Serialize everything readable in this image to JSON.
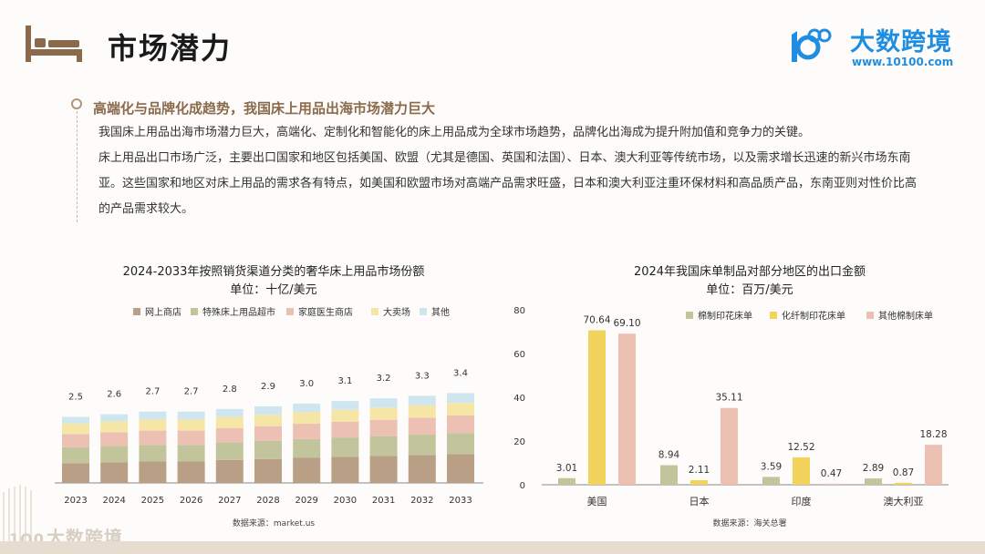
{
  "header": {
    "title": "市场潜力",
    "logo_name": "大数跨境",
    "logo_url": "www.10100.com",
    "bottom_logo_name": "大数跨境"
  },
  "section": {
    "heading": "高端化与品牌化成趋势，我国床上用品出海市场潜力巨大",
    "paragraphs": [
      "我国床上用品出海市场潜力巨大，高端化、定制化和智能化的床上用品成为全球市场趋势，品牌化出海成为提升附加值和竞争力的关键。",
      "床上用品出口市场广泛，主要出口国家和地区包括美国、欧盟（尤其是德国、英国和法国）、日本、澳大利亚等传统市场，以及需求增长迅速的新兴市场东南亚。这些国家和地区对床上用品的需求各有特点，如美国和欧盟市场对高端产品需求旺盛，日本和澳大利亚注重环保材料和高品质产品，东南亚则对性价比高的产品需求较大。"
    ]
  },
  "chart_data": [
    {
      "type": "bar",
      "stacked": true,
      "title": "2024-2033年按照销货渠道分类的奢华床上用品市场份额",
      "unit": "单位：十亿/美元",
      "source": "数据来源：market.us",
      "categories": [
        "2023",
        "2024",
        "2025",
        "2026",
        "2027",
        "2028",
        "2029",
        "2030",
        "2031",
        "2032",
        "2033"
      ],
      "totals": [
        2.5,
        2.6,
        2.7,
        2.7,
        2.8,
        2.9,
        3.0,
        3.1,
        3.2,
        3.3,
        3.4
      ],
      "total_labels": [
        "2.5",
        "2.6",
        "2.7",
        "2.7",
        "2.8",
        "2.9",
        "3.0",
        "3.1",
        "3.2",
        "3.3",
        "3.4"
      ],
      "series": [
        {
          "name": "网上商店",
          "color": "#b89f86",
          "values": [
            0.75,
            0.78,
            0.81,
            0.81,
            0.87,
            0.9,
            0.96,
            0.99,
            1.02,
            1.06,
            1.09
          ]
        },
        {
          "name": "特殊床上用品超市",
          "color": "#c2c59c",
          "values": [
            0.6,
            0.62,
            0.63,
            0.63,
            0.66,
            0.69,
            0.7,
            0.73,
            0.75,
            0.77,
            0.8
          ]
        },
        {
          "name": "家庭医生商店",
          "color": "#ecc0b3",
          "values": [
            0.5,
            0.52,
            0.54,
            0.54,
            0.55,
            0.56,
            0.58,
            0.6,
            0.62,
            0.64,
            0.66
          ]
        },
        {
          "name": "大卖场",
          "color": "#f6e6a6",
          "values": [
            0.4,
            0.41,
            0.42,
            0.42,
            0.42,
            0.43,
            0.44,
            0.45,
            0.46,
            0.47,
            0.48
          ]
        },
        {
          "name": "其他",
          "color": "#cfe6f1",
          "values": [
            0.25,
            0.27,
            0.3,
            0.3,
            0.3,
            0.32,
            0.32,
            0.33,
            0.35,
            0.36,
            0.37
          ]
        }
      ]
    },
    {
      "type": "bar",
      "title": "2024年我国床单制品对部分地区的出口金额",
      "unit": "单位：百万/美元",
      "source": "数据来源：海关总署",
      "categories": [
        "美国",
        "日本",
        "印度",
        "澳大利亚"
      ],
      "ylim": [
        0,
        80
      ],
      "yticks": [
        "0",
        "20",
        "40",
        "60",
        "80"
      ],
      "series": [
        {
          "name": "棉制印花床单",
          "color": "#c2c59c",
          "values": [
            3.01,
            8.94,
            3.59,
            2.89
          ],
          "labels": [
            "3.01",
            "8.94",
            "3.59",
            "2.89"
          ]
        },
        {
          "name": "化纤制印花床单",
          "color": "#f1d35e",
          "values": [
            70.64,
            2.11,
            12.52,
            0.87
          ],
          "labels": [
            "70.64",
            "2.11",
            "12.52",
            "0.87"
          ]
        },
        {
          "name": "其他棉制床单",
          "color": "#ecc0b3",
          "values": [
            69.1,
            35.11,
            0.47,
            18.28
          ],
          "labels": [
            "69.10",
            "35.11",
            "0.47",
            "18.28"
          ]
        }
      ]
    }
  ]
}
